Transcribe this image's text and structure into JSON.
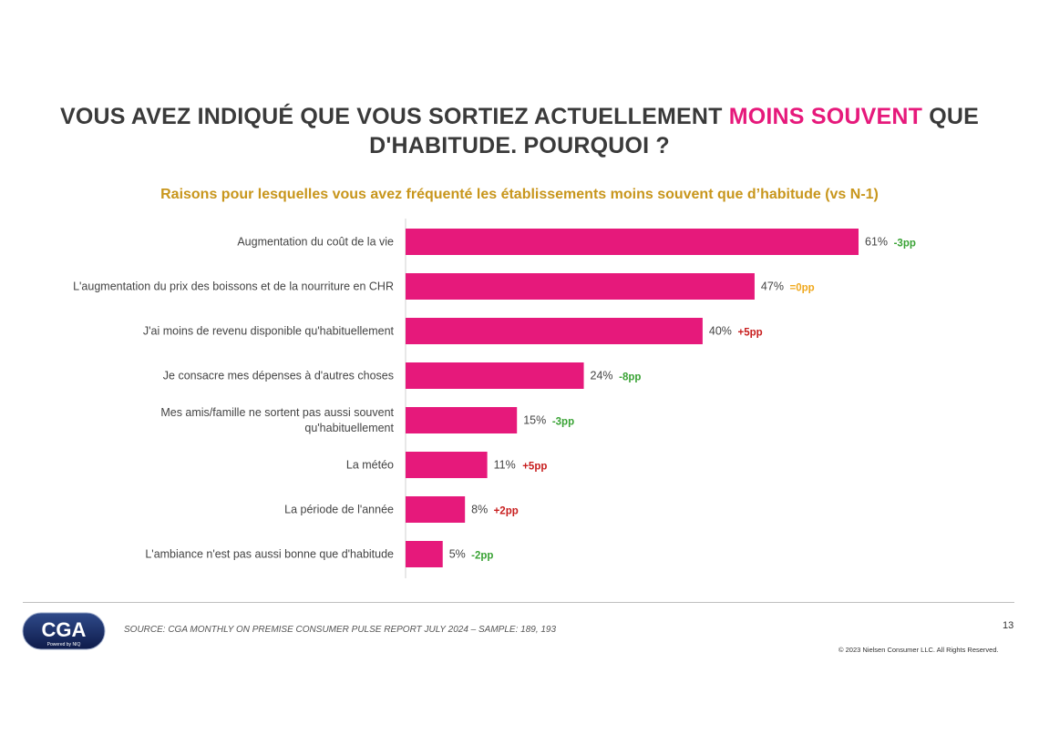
{
  "title": {
    "part1": "VOUS AVEZ INDIQUÉ QUE VOUS SORTIEZ ACTUELLEMENT ",
    "highlight": "MOINS SOUVENT",
    "part2": " QUE",
    "line2": "D'HABITUDE. POURQUOI ?"
  },
  "footer": {
    "logo_text": "CGA",
    "logo_subtext": "Powered by NIQ",
    "source": "SOURCE: CGA MONTHLY ON PREMISE CONSUMER PULSE REPORT JULY 2024 – SAMPLE: 189, 193",
    "page_number": "13",
    "copyright": "© 2023 Nielsen Consumer LLC. All Rights Reserved."
  },
  "colors": {
    "bar": "#e6197b",
    "title_highlight": "#e6197b",
    "subtitle": "#c8961c",
    "change_negative": "#3aa335",
    "change_zero": "#f0a81c",
    "change_positive": "#c81e1e"
  },
  "chart_data": {
    "type": "bar",
    "orientation": "horizontal",
    "title": "Raisons pour lesquelles vous avez fréquenté les établissements moins souvent que d’habitude (vs N-1)",
    "categories": [
      [
        "Augmentation du coût de la vie"
      ],
      [
        "L'augmentation du prix des boissons et de la nourriture en CHR"
      ],
      [
        "J'ai moins de revenu disponible qu'habituellement"
      ],
      [
        "Je consacre mes dépenses à d'autres choses"
      ],
      [
        "Mes amis/famille ne sortent pas aussi souvent",
        "qu'habituellement"
      ],
      [
        "La météo"
      ],
      [
        "La période de l'année"
      ],
      [
        "L'ambiance n'est pas aussi bonne que d'habitude"
      ]
    ],
    "values": [
      61,
      47,
      40,
      24,
      15,
      11,
      8,
      5
    ],
    "value_labels": [
      "61%",
      "47%",
      "40%",
      "24%",
      "15%",
      "11%",
      "8%",
      "5%"
    ],
    "changes": [
      "-3pp",
      "=0pp",
      "+5pp",
      "-8pp",
      "-3pp",
      "+5pp",
      "+2pp",
      "-2pp"
    ],
    "unit": "%",
    "xlim": [
      0,
      61
    ],
    "grid": false,
    "legend": "none"
  }
}
